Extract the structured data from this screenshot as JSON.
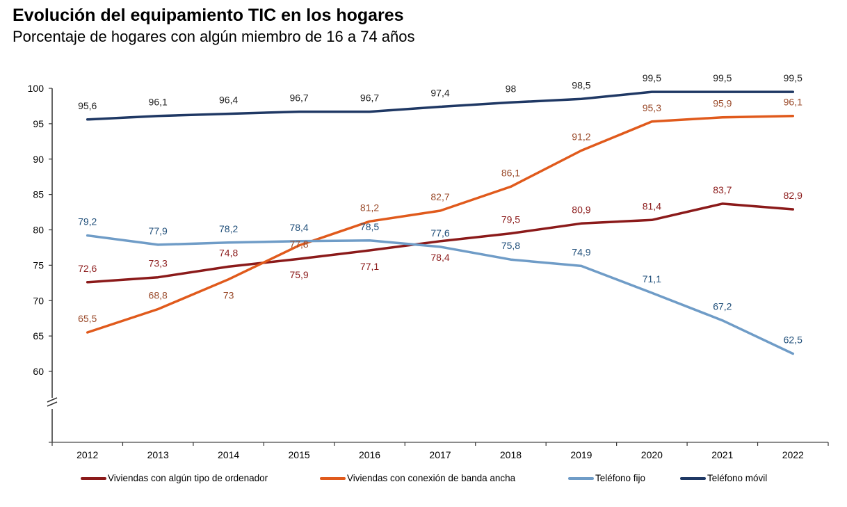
{
  "chart_data": {
    "type": "line",
    "title": "Evolución del equipamiento TIC en los hogares",
    "subtitle": "Porcentaje de hogares con algún miembro de 16 a 74 años",
    "xlabel": "",
    "ylabel": "",
    "categories": [
      "2012",
      "2013",
      "2014",
      "2015",
      "2016",
      "2017",
      "2018",
      "2019",
      "2020",
      "2021",
      "2022"
    ],
    "ylim": [
      50,
      100
    ],
    "yticks": [
      100,
      95,
      90,
      85,
      80,
      75,
      70,
      65,
      60
    ],
    "ytick_labels": [
      "100",
      "95",
      "90",
      "85",
      "80",
      "75",
      "70",
      "65",
      "60"
    ],
    "axis_break": true,
    "grid": false,
    "legend_position": "bottom",
    "series": [
      {
        "name": "Viviendas con algún tipo de ordenador",
        "color": "#8B1A1A",
        "label_color": "#8B1A1A",
        "values": [
          72.6,
          73.3,
          74.8,
          75.9,
          77.1,
          78.4,
          79.5,
          80.9,
          81.4,
          83.7,
          82.9
        ],
        "labels": [
          "72,6",
          "73,3",
          "74,8",
          "75,9",
          "77,1",
          "78,4",
          "79,5",
          "80,9",
          "81,4",
          "83,7",
          "82,9"
        ],
        "label_side": [
          "above",
          "above",
          "above",
          "below",
          "below",
          "below",
          "above",
          "above",
          "above",
          "above",
          "above"
        ]
      },
      {
        "name": "Viviendas con conexión de banda ancha",
        "color": "#E05A1C",
        "label_color": "#9A4A2A",
        "values": [
          65.5,
          68.8,
          73.0,
          77.8,
          81.2,
          82.7,
          86.1,
          91.2,
          95.3,
          95.9,
          96.1
        ],
        "labels": [
          "65,5",
          "68,8",
          "73",
          "77,8",
          "81,2",
          "82,7",
          "86,1",
          "91,2",
          "95,3",
          "95,9",
          "96,1"
        ],
        "label_side": [
          "above",
          "above",
          "below",
          "on",
          "above",
          "above",
          "above",
          "above",
          "above",
          "above",
          "above"
        ]
      },
      {
        "name": "Teléfono fijo",
        "color": "#6F9CC7",
        "label_color": "#1F4E79",
        "values": [
          79.2,
          77.9,
          78.2,
          78.4,
          78.5,
          77.6,
          75.8,
          74.9,
          71.1,
          67.2,
          62.5
        ],
        "labels": [
          "79,2",
          "77,9",
          "78,2",
          "78,4",
          "78,5",
          "77,6",
          "75,8",
          "74,9",
          "71,1",
          "67,2",
          "62,5"
        ],
        "label_side": [
          "above",
          "above",
          "above",
          "above",
          "above",
          "above",
          "above",
          "above",
          "above",
          "above",
          "above"
        ]
      },
      {
        "name": "Teléfono móvil",
        "color": "#1F3864",
        "label_color": "#222222",
        "values": [
          95.6,
          96.1,
          96.4,
          96.7,
          96.7,
          97.4,
          98.0,
          98.5,
          99.5,
          99.5,
          99.5
        ],
        "labels": [
          "95,6",
          "96,1",
          "96,4",
          "96,7",
          "96,7",
          "97,4",
          "98",
          "98,5",
          "99,5",
          "99,5",
          "99,5"
        ],
        "label_side": [
          "above",
          "above",
          "above",
          "above",
          "above",
          "above",
          "above",
          "above",
          "above",
          "above",
          "above"
        ]
      }
    ]
  }
}
